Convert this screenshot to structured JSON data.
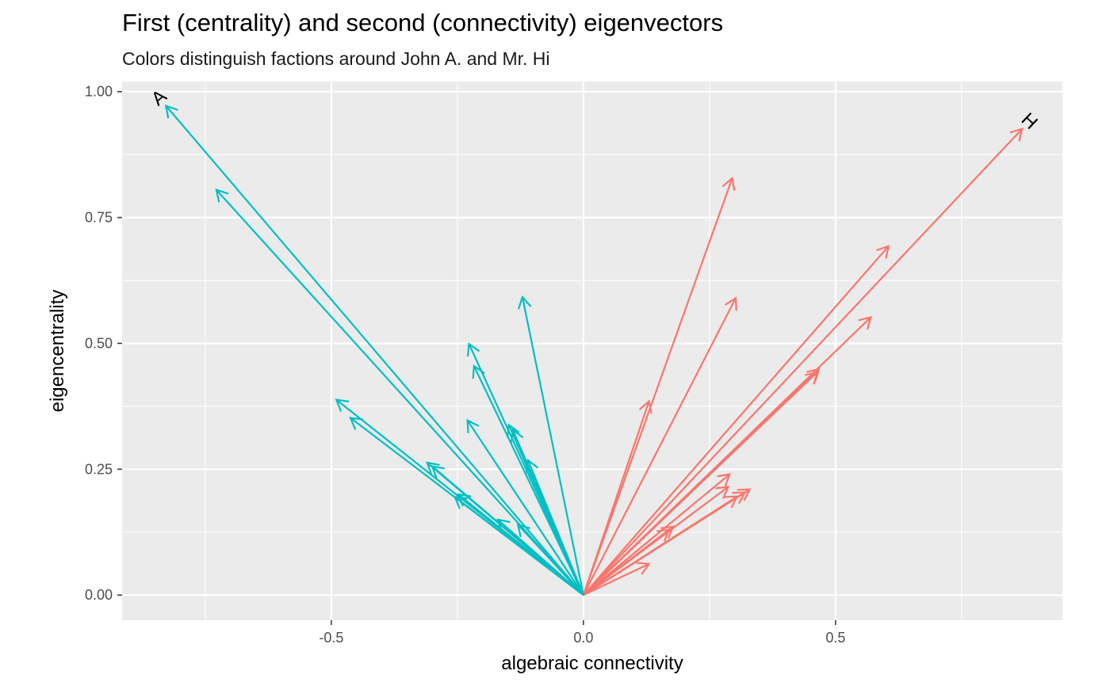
{
  "chart_data": {
    "type": "scatter",
    "title": "First (centrality) and second (connectivity) eigenvectors",
    "subtitle": "Colors distinguish factions around John A. and Mr. Hi",
    "xlabel": "algebraic connectivity",
    "ylabel": "eigencentrality",
    "xlim": [
      -0.915,
      0.95
    ],
    "ylim": [
      -0.05,
      1.02
    ],
    "x_ticks": [
      -0.5,
      0.0,
      0.5
    ],
    "x_tick_labels": [
      "-0.5",
      "0.0",
      "0.5"
    ],
    "y_ticks": [
      0.0,
      0.25,
      0.5,
      0.75,
      1.0
    ],
    "y_tick_labels": [
      "0.00",
      "0.25",
      "0.50",
      "0.75",
      "1.00"
    ],
    "origin": [
      0,
      0
    ],
    "grid": true,
    "legend": "none",
    "colors": {
      "faction_1": "#F8766D",
      "faction_2": "#00BFC4"
    },
    "series": [
      {
        "faction": "faction_1",
        "color": "#F8766D",
        "arrows": [
          {
            "x": 0.87,
            "y": 0.926,
            "label": "H"
          },
          {
            "x": 0.295,
            "y": 0.828
          },
          {
            "x": 0.605,
            "y": 0.693
          },
          {
            "x": 0.302,
            "y": 0.59
          },
          {
            "x": 0.57,
            "y": 0.552
          },
          {
            "x": 0.467,
            "y": 0.449
          },
          {
            "x": 0.464,
            "y": 0.443
          },
          {
            "x": 0.13,
            "y": 0.385
          },
          {
            "x": 0.29,
            "y": 0.24
          },
          {
            "x": 0.287,
            "y": 0.215
          },
          {
            "x": 0.33,
            "y": 0.21
          },
          {
            "x": 0.305,
            "y": 0.196
          },
          {
            "x": 0.32,
            "y": 0.204
          },
          {
            "x": 0.178,
            "y": 0.136
          },
          {
            "x": 0.17,
            "y": 0.13
          },
          {
            "x": 0.13,
            "y": 0.062
          }
        ]
      },
      {
        "faction": "faction_2",
        "color": "#00BFC4",
        "arrows": [
          {
            "x": -0.828,
            "y": 0.972,
            "label": "A"
          },
          {
            "x": -0.728,
            "y": 0.805
          },
          {
            "x": -0.121,
            "y": 0.592
          },
          {
            "x": -0.227,
            "y": 0.499
          },
          {
            "x": -0.217,
            "y": 0.455
          },
          {
            "x": -0.49,
            "y": 0.388
          },
          {
            "x": -0.462,
            "y": 0.352
          },
          {
            "x": -0.23,
            "y": 0.347
          },
          {
            "x": -0.148,
            "y": 0.338
          },
          {
            "x": -0.14,
            "y": 0.328
          },
          {
            "x": -0.11,
            "y": 0.268
          },
          {
            "x": -0.31,
            "y": 0.263
          },
          {
            "x": -0.3,
            "y": 0.256
          },
          {
            "x": -0.255,
            "y": 0.195
          },
          {
            "x": -0.248,
            "y": 0.2
          },
          {
            "x": -0.17,
            "y": 0.15
          },
          {
            "x": -0.13,
            "y": 0.14
          }
        ]
      }
    ]
  }
}
